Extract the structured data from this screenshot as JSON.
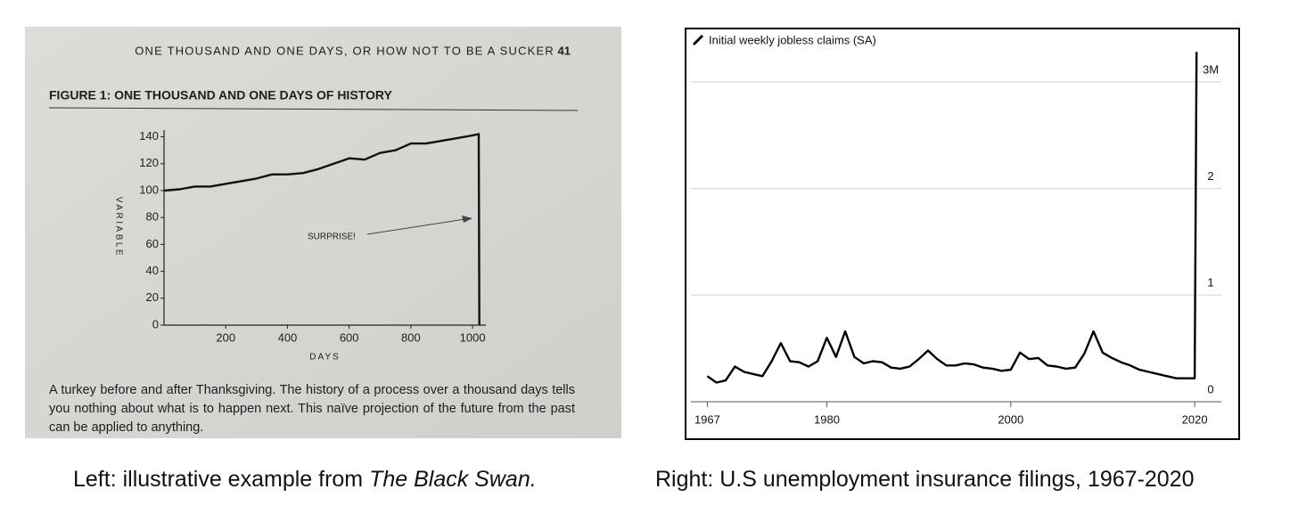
{
  "chart_data": [
    {
      "type": "line",
      "header": "ONE THOUSAND AND ONE DAYS, OR HOW NOT TO BE A SUCKER",
      "page_number": "41",
      "title": "FIGURE 1: ONE THOUSAND AND ONE DAYS OF HISTORY",
      "x_label": "DAYS",
      "y_label": "VARIABLE",
      "annotation": "SURPRISE!",
      "caption": "A turkey before and after Thanksgiving. The history of a process over a thousand days tells you nothing about what is to happen next. This naïve projection of the future from the past can be applied to anything.",
      "x": [
        0,
        50,
        100,
        150,
        200,
        250,
        300,
        350,
        400,
        450,
        500,
        550,
        600,
        650,
        700,
        750,
        800,
        850,
        900,
        950,
        1000,
        1020,
        1022
      ],
      "series": [
        {
          "color": "#111111",
          "values": [
            100,
            101,
            103,
            103,
            105,
            107,
            109,
            112,
            112,
            113,
            116,
            120,
            124,
            123,
            128,
            130,
            135,
            135,
            137,
            139,
            141,
            142,
            0
          ]
        }
      ],
      "xlim": [
        0,
        1043
      ],
      "xticks": [
        200,
        400,
        600,
        800,
        1000
      ],
      "ylim": [
        0,
        145
      ],
      "yticks": [
        0,
        20,
        40,
        60,
        80,
        100,
        120,
        140
      ]
    },
    {
      "type": "line",
      "title": "Initial weekly jobless claims (SA)",
      "x": [
        1967,
        1968,
        1969,
        1970,
        1971,
        1972,
        1973,
        1974,
        1975,
        1976,
        1977,
        1978,
        1979,
        1980,
        1981,
        1982,
        1983,
        1984,
        1985,
        1986,
        1987,
        1988,
        1989,
        1990,
        1991,
        1992,
        1993,
        1994,
        1995,
        1996,
        1997,
        1998,
        1999,
        2000,
        2001,
        2002,
        2003,
        2004,
        2005,
        2006,
        2007,
        2008,
        2009,
        2010,
        2011,
        2012,
        2013,
        2014,
        2015,
        2016,
        2017,
        2018,
        2019,
        2020,
        2020.2
      ],
      "series": [
        {
          "color": "#000000",
          "values": [
            0.24,
            0.18,
            0.2,
            0.33,
            0.28,
            0.26,
            0.24,
            0.38,
            0.55,
            0.38,
            0.37,
            0.33,
            0.38,
            0.6,
            0.42,
            0.66,
            0.42,
            0.36,
            0.38,
            0.37,
            0.32,
            0.31,
            0.33,
            0.4,
            0.48,
            0.4,
            0.34,
            0.34,
            0.36,
            0.35,
            0.32,
            0.31,
            0.29,
            0.3,
            0.46,
            0.4,
            0.41,
            0.34,
            0.33,
            0.31,
            0.32,
            0.45,
            0.66,
            0.46,
            0.41,
            0.37,
            0.34,
            0.3,
            0.28,
            0.26,
            0.24,
            0.22,
            0.22,
            0.22,
            3.28
          ]
        }
      ],
      "xlim": [
        1965.7,
        2022.9
      ],
      "xticks": [
        1967,
        1980,
        2000,
        2020
      ],
      "ylim": [
        0,
        3.5
      ],
      "yticks": [
        0,
        1,
        2,
        {
          "value": 3,
          "label": "3M"
        }
      ]
    }
  ],
  "captions": {
    "left_prefix": "Left: illustrative example from",
    "left_book": "The Black Swan.",
    "right": "Right: U.S unemployment insurance filings, 1967-2020"
  }
}
